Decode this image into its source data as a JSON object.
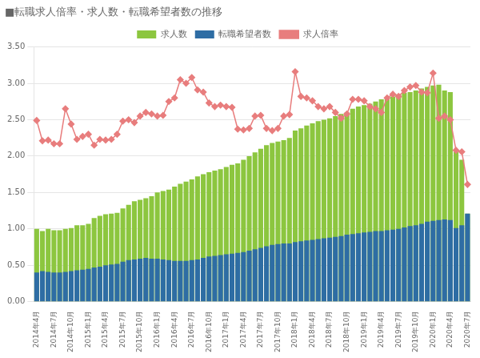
{
  "chart_data": {
    "type": "bar",
    "title": "■転職求人倍率・求人数・転職希望者数の推移",
    "categories": [
      "2014年4月",
      null,
      null,
      "2014年7月",
      null,
      null,
      "2014年10月",
      null,
      null,
      "2015年1月",
      null,
      null,
      "2015年4月",
      null,
      null,
      "2015年7月",
      null,
      null,
      "2015年10月",
      null,
      null,
      "2016年1月",
      null,
      null,
      "2016年4月",
      null,
      null,
      "2016年7月",
      null,
      null,
      "2016年10月",
      null,
      null,
      "2017年1月",
      null,
      null,
      "2017年4月",
      null,
      null,
      "2017年7月",
      null,
      null,
      "2017年10月",
      null,
      null,
      "2018年1月",
      null,
      null,
      "2018年4月",
      null,
      null,
      "2018年7月",
      null,
      null,
      "2018年10月",
      null,
      null,
      "2019年1月",
      null,
      null,
      "2019年4月",
      null,
      null,
      "2019年7月",
      null,
      null,
      "2019年10月",
      null,
      null,
      "2020年1月",
      null,
      null,
      "2020年4月",
      null,
      null,
      "2020年7月"
    ],
    "series": [
      {
        "name": "求人数",
        "type": "bar",
        "color": "#8cc63f",
        "values": [
          1.0,
          0.97,
          1.0,
          0.98,
          0.98,
          1.0,
          1.01,
          1.05,
          1.05,
          1.07,
          1.15,
          1.18,
          1.2,
          1.21,
          1.22,
          1.28,
          1.33,
          1.38,
          1.4,
          1.42,
          1.45,
          1.5,
          1.52,
          1.54,
          1.58,
          1.62,
          1.65,
          1.68,
          1.72,
          1.75,
          1.78,
          1.8,
          1.82,
          1.85,
          1.88,
          1.9,
          1.95,
          2.0,
          2.05,
          2.1,
          2.15,
          2.18,
          2.2,
          2.22,
          2.25,
          2.35,
          2.38,
          2.42,
          2.45,
          2.48,
          2.5,
          2.52,
          2.55,
          2.58,
          2.6,
          2.65,
          2.68,
          2.7,
          2.72,
          2.75,
          2.78,
          2.8,
          2.82,
          2.85,
          2.87,
          2.88,
          2.9,
          2.93,
          2.95,
          2.97,
          2.98,
          2.9,
          2.88,
          2.06,
          1.95,
          1.21
        ]
      },
      {
        "name": "転職希望者数",
        "type": "bar",
        "color": "#2e6da4",
        "values": [
          0.4,
          0.42,
          0.41,
          0.4,
          0.4,
          0.41,
          0.42,
          0.43,
          0.44,
          0.45,
          0.47,
          0.48,
          0.5,
          0.51,
          0.52,
          0.55,
          0.57,
          0.58,
          0.59,
          0.6,
          0.59,
          0.59,
          0.58,
          0.57,
          0.56,
          0.56,
          0.56,
          0.57,
          0.58,
          0.6,
          0.62,
          0.63,
          0.64,
          0.65,
          0.66,
          0.67,
          0.68,
          0.7,
          0.72,
          0.74,
          0.76,
          0.78,
          0.79,
          0.8,
          0.8,
          0.82,
          0.83,
          0.84,
          0.85,
          0.86,
          0.87,
          0.88,
          0.89,
          0.9,
          0.92,
          0.93,
          0.94,
          0.95,
          0.96,
          0.97,
          0.97,
          0.98,
          0.99,
          1.0,
          1.02,
          1.04,
          1.05,
          1.07,
          1.1,
          1.11,
          1.12,
          1.13,
          1.12,
          1.01,
          1.05,
          1.21
        ]
      },
      {
        "name": "求人倍率",
        "type": "line",
        "color": "#e87d7d",
        "marker": "diamond",
        "values": [
          2.49,
          2.21,
          2.22,
          2.17,
          2.17,
          2.65,
          2.44,
          2.23,
          2.27,
          2.3,
          2.15,
          2.23,
          2.22,
          2.23,
          2.3,
          2.48,
          2.5,
          2.46,
          2.55,
          2.6,
          2.58,
          2.55,
          2.56,
          2.75,
          2.8,
          3.05,
          3.0,
          3.08,
          2.91,
          2.88,
          2.73,
          2.68,
          2.7,
          2.68,
          2.67,
          2.37,
          2.36,
          2.38,
          2.55,
          2.56,
          2.38,
          2.35,
          2.38,
          2.55,
          2.57,
          3.16,
          2.82,
          2.8,
          2.76,
          2.68,
          2.65,
          2.68,
          2.6,
          2.52,
          2.58,
          2.78,
          2.78,
          2.76,
          2.68,
          2.65,
          2.6,
          2.8,
          2.85,
          2.82,
          2.9,
          2.95,
          2.97,
          2.88,
          2.87,
          3.14,
          2.52,
          2.55,
          2.5,
          2.08,
          2.06,
          1.61
        ]
      }
    ],
    "ylim": [
      0.0,
      3.5
    ],
    "yticks": [
      {
        "value": 0.0,
        "label": "0.00"
      },
      {
        "value": 0.5,
        "label": "0.50"
      },
      {
        "value": 1.0,
        "label": "1.00"
      },
      {
        "value": 1.5,
        "label": "1.50"
      },
      {
        "value": 2.0,
        "label": "2.00"
      },
      {
        "value": 2.5,
        "label": "2.50"
      },
      {
        "value": 3.0,
        "label": "3.00"
      },
      {
        "value": 3.5,
        "label": "3.50"
      }
    ],
    "grid": "y",
    "legend": "top"
  }
}
